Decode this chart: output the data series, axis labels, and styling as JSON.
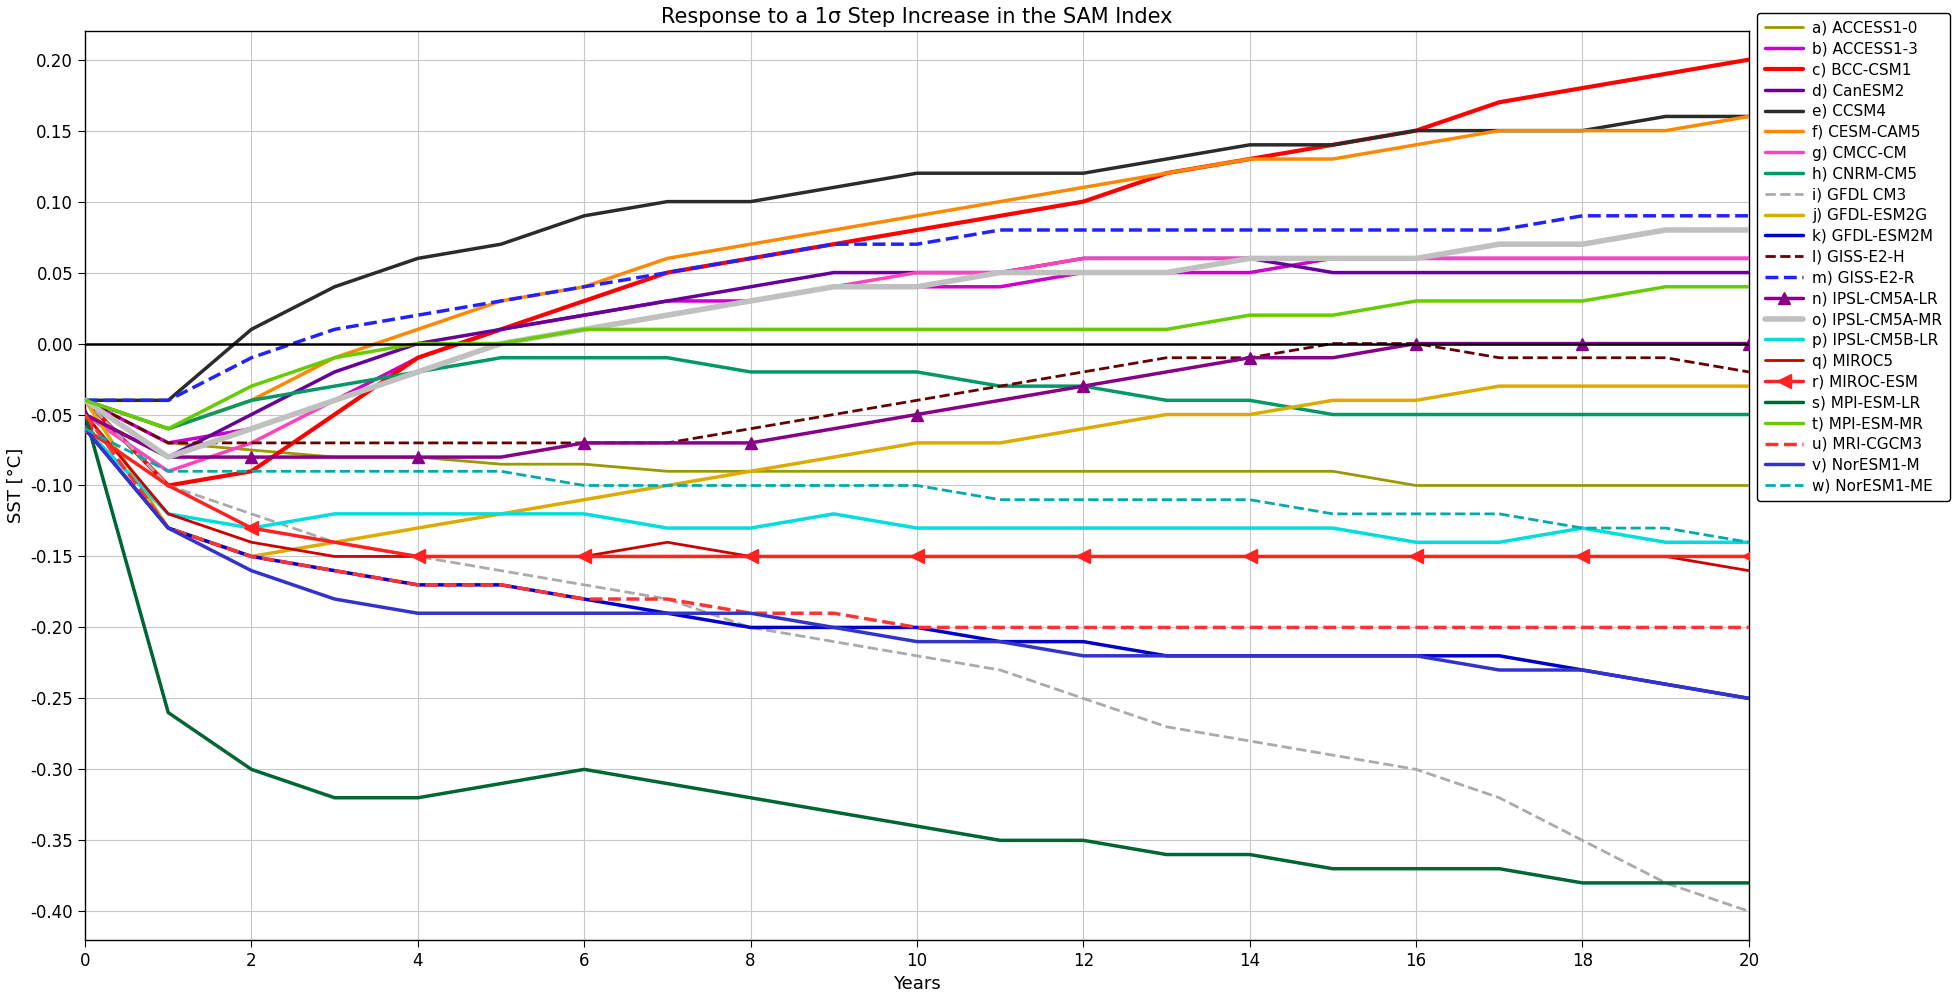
{
  "title": "Response to a 1σ Step Increase in the SAM Index",
  "xlabel": "Years",
  "ylabel": "SST [°C]",
  "xlim": [
    0,
    20
  ],
  "ylim": [
    -0.42,
    0.22
  ],
  "yticks": [
    -0.4,
    -0.35,
    -0.3,
    -0.25,
    -0.2,
    -0.15,
    -0.1,
    -0.05,
    0.0,
    0.05,
    0.1,
    0.15,
    0.2
  ],
  "xticks": [
    0,
    2,
    4,
    6,
    8,
    10,
    12,
    14,
    16,
    18,
    20
  ],
  "models": [
    {
      "label": "a) ACCESS1-0",
      "color": "#999900",
      "lw": 2.0,
      "ls": "-",
      "marker": null,
      "data_x": [
        0,
        1,
        2,
        3,
        4,
        5,
        6,
        7,
        8,
        9,
        10,
        11,
        12,
        13,
        14,
        15,
        16,
        17,
        18,
        19,
        20
      ],
      "data_y": [
        -0.04,
        -0.07,
        -0.075,
        -0.08,
        -0.08,
        -0.085,
        -0.085,
        -0.09,
        -0.09,
        -0.09,
        -0.09,
        -0.09,
        -0.09,
        -0.09,
        -0.09,
        -0.09,
        -0.1,
        -0.1,
        -0.1,
        -0.1,
        -0.1
      ]
    },
    {
      "label": "b) ACCESS1-3",
      "color": "#cc00cc",
      "lw": 2.5,
      "ls": "-",
      "marker": null,
      "data_x": [
        0,
        1,
        2,
        3,
        4,
        5,
        6,
        7,
        8,
        9,
        10,
        11,
        12,
        13,
        14,
        15,
        16,
        17,
        18,
        19,
        20
      ],
      "data_y": [
        -0.04,
        -0.07,
        -0.06,
        -0.04,
        -0.01,
        0.01,
        0.02,
        0.03,
        0.03,
        0.04,
        0.04,
        0.04,
        0.05,
        0.05,
        0.05,
        0.06,
        0.06,
        0.06,
        0.06,
        0.06,
        0.06
      ]
    },
    {
      "label": "c) BCC-CSM1",
      "color": "#ff0000",
      "lw": 3.0,
      "ls": "-",
      "marker": null,
      "data_x": [
        0,
        1,
        2,
        3,
        4,
        5,
        6,
        7,
        8,
        9,
        10,
        11,
        12,
        13,
        14,
        15,
        16,
        17,
        18,
        19,
        20
      ],
      "data_y": [
        -0.04,
        -0.1,
        -0.09,
        -0.05,
        -0.01,
        0.01,
        0.03,
        0.05,
        0.06,
        0.07,
        0.08,
        0.09,
        0.1,
        0.12,
        0.13,
        0.14,
        0.15,
        0.17,
        0.18,
        0.19,
        0.2
      ]
    },
    {
      "label": "d) CanESM2",
      "color": "#660099",
      "lw": 2.5,
      "ls": "-",
      "marker": null,
      "data_x": [
        0,
        1,
        2,
        3,
        4,
        5,
        6,
        7,
        8,
        9,
        10,
        11,
        12,
        13,
        14,
        15,
        16,
        17,
        18,
        19,
        20
      ],
      "data_y": [
        -0.05,
        -0.08,
        -0.05,
        -0.02,
        0.0,
        0.01,
        0.02,
        0.03,
        0.04,
        0.05,
        0.05,
        0.05,
        0.06,
        0.06,
        0.06,
        0.05,
        0.05,
        0.05,
        0.05,
        0.05,
        0.05
      ]
    },
    {
      "label": "e) CCSM4",
      "color": "#2b2b2b",
      "lw": 2.5,
      "ls": "-",
      "marker": null,
      "data_x": [
        0,
        1,
        2,
        3,
        4,
        5,
        6,
        7,
        8,
        9,
        10,
        11,
        12,
        13,
        14,
        15,
        16,
        17,
        18,
        19,
        20
      ],
      "data_y": [
        -0.04,
        -0.04,
        0.01,
        0.04,
        0.06,
        0.07,
        0.09,
        0.1,
        0.1,
        0.11,
        0.12,
        0.12,
        0.12,
        0.13,
        0.14,
        0.14,
        0.15,
        0.15,
        0.15,
        0.16,
        0.16
      ]
    },
    {
      "label": "f) CESM-CAM5",
      "color": "#ff8800",
      "lw": 2.5,
      "ls": "-",
      "marker": null,
      "data_x": [
        0,
        1,
        2,
        3,
        4,
        5,
        6,
        7,
        8,
        9,
        10,
        11,
        12,
        13,
        14,
        15,
        16,
        17,
        18,
        19,
        20
      ],
      "data_y": [
        -0.04,
        -0.06,
        -0.04,
        -0.01,
        0.01,
        0.03,
        0.04,
        0.06,
        0.07,
        0.08,
        0.09,
        0.1,
        0.11,
        0.12,
        0.13,
        0.13,
        0.14,
        0.15,
        0.15,
        0.15,
        0.16
      ]
    },
    {
      "label": "g) CMCC-CM",
      "color": "#ff44bb",
      "lw": 2.5,
      "ls": "-",
      "marker": null,
      "data_x": [
        0,
        1,
        2,
        3,
        4,
        5,
        6,
        7,
        8,
        9,
        10,
        11,
        12,
        13,
        14,
        15,
        16,
        17,
        18,
        19,
        20
      ],
      "data_y": [
        -0.05,
        -0.09,
        -0.07,
        -0.04,
        -0.02,
        0.0,
        0.01,
        0.02,
        0.03,
        0.04,
        0.05,
        0.05,
        0.06,
        0.06,
        0.06,
        0.06,
        0.06,
        0.06,
        0.06,
        0.06,
        0.06
      ]
    },
    {
      "label": "h) CNRM-CM5",
      "color": "#009966",
      "lw": 2.5,
      "ls": "-",
      "marker": null,
      "data_x": [
        0,
        1,
        2,
        3,
        4,
        5,
        6,
        7,
        8,
        9,
        10,
        11,
        12,
        13,
        14,
        15,
        16,
        17,
        18,
        19,
        20
      ],
      "data_y": [
        -0.04,
        -0.06,
        -0.04,
        -0.03,
        -0.02,
        -0.01,
        -0.01,
        -0.01,
        -0.02,
        -0.02,
        -0.02,
        -0.03,
        -0.03,
        -0.04,
        -0.04,
        -0.05,
        -0.05,
        -0.05,
        -0.05,
        -0.05,
        -0.05
      ]
    },
    {
      "label": "i) GFDL CM3",
      "color": "#aaaaaa",
      "lw": 2.0,
      "ls": "--",
      "marker": null,
      "data_x": [
        0,
        1,
        2,
        3,
        4,
        5,
        6,
        7,
        8,
        9,
        10,
        11,
        12,
        13,
        14,
        15,
        16,
        17,
        18,
        19,
        20
      ],
      "data_y": [
        -0.04,
        -0.1,
        -0.12,
        -0.14,
        -0.15,
        -0.16,
        -0.17,
        -0.18,
        -0.2,
        -0.21,
        -0.22,
        -0.23,
        -0.25,
        -0.27,
        -0.28,
        -0.29,
        -0.3,
        -0.32,
        -0.35,
        -0.38,
        -0.4
      ]
    },
    {
      "label": "j) GFDL-ESM2G",
      "color": "#ddaa00",
      "lw": 2.5,
      "ls": "-",
      "marker": null,
      "data_x": [
        0,
        1,
        2,
        3,
        4,
        5,
        6,
        7,
        8,
        9,
        10,
        11,
        12,
        13,
        14,
        15,
        16,
        17,
        18,
        19,
        20
      ],
      "data_y": [
        -0.04,
        -0.13,
        -0.15,
        -0.14,
        -0.13,
        -0.12,
        -0.11,
        -0.1,
        -0.09,
        -0.08,
        -0.07,
        -0.07,
        -0.06,
        -0.05,
        -0.05,
        -0.04,
        -0.04,
        -0.03,
        -0.03,
        -0.03,
        -0.03
      ]
    },
    {
      "label": "k) GFDL-ESM2M",
      "color": "#0000cc",
      "lw": 2.5,
      "ls": "-",
      "marker": null,
      "data_x": [
        0,
        1,
        2,
        3,
        4,
        5,
        6,
        7,
        8,
        9,
        10,
        11,
        12,
        13,
        14,
        15,
        16,
        17,
        18,
        19,
        20
      ],
      "data_y": [
        -0.06,
        -0.13,
        -0.15,
        -0.16,
        -0.17,
        -0.17,
        -0.18,
        -0.19,
        -0.2,
        -0.2,
        -0.2,
        -0.21,
        -0.21,
        -0.22,
        -0.22,
        -0.22,
        -0.22,
        -0.22,
        -0.23,
        -0.24,
        -0.25
      ]
    },
    {
      "label": "l) GISS-E2-H",
      "color": "#660000",
      "lw": 2.0,
      "ls": "--",
      "marker": null,
      "data_x": [
        0,
        1,
        2,
        3,
        4,
        5,
        6,
        7,
        8,
        9,
        10,
        11,
        12,
        13,
        14,
        15,
        16,
        17,
        18,
        19,
        20
      ],
      "data_y": [
        -0.04,
        -0.07,
        -0.07,
        -0.07,
        -0.07,
        -0.07,
        -0.07,
        -0.07,
        -0.06,
        -0.05,
        -0.04,
        -0.03,
        -0.02,
        -0.01,
        -0.01,
        0.0,
        0.0,
        -0.01,
        -0.01,
        -0.01,
        -0.02
      ]
    },
    {
      "label": "m) GISS-E2-R",
      "color": "#2222ff",
      "lw": 2.5,
      "ls": "--",
      "marker": null,
      "data_x": [
        0,
        1,
        2,
        3,
        4,
        5,
        6,
        7,
        8,
        9,
        10,
        11,
        12,
        13,
        14,
        15,
        16,
        17,
        18,
        19,
        20
      ],
      "data_y": [
        -0.04,
        -0.04,
        -0.01,
        0.01,
        0.02,
        0.03,
        0.04,
        0.05,
        0.06,
        0.07,
        0.07,
        0.08,
        0.08,
        0.08,
        0.08,
        0.08,
        0.08,
        0.08,
        0.09,
        0.09,
        0.09
      ]
    },
    {
      "label": "n) IPSL-CM5A-LR",
      "color": "#880088",
      "lw": 2.5,
      "ls": "-",
      "marker": "^",
      "markersize": 9,
      "markevery": 2,
      "data_x": [
        0,
        1,
        2,
        3,
        4,
        5,
        6,
        7,
        8,
        9,
        10,
        11,
        12,
        13,
        14,
        15,
        16,
        17,
        18,
        19,
        20
      ],
      "data_y": [
        -0.05,
        -0.08,
        -0.08,
        -0.08,
        -0.08,
        -0.08,
        -0.07,
        -0.07,
        -0.07,
        -0.06,
        -0.05,
        -0.04,
        -0.03,
        -0.02,
        -0.01,
        -0.01,
        0.0,
        0.0,
        0.0,
        0.0,
        0.0
      ]
    },
    {
      "label": "o) IPSL-CM5A-MR",
      "color": "#c0c0c0",
      "lw": 4.0,
      "ls": "-",
      "marker": null,
      "data_x": [
        0,
        1,
        2,
        3,
        4,
        5,
        6,
        7,
        8,
        9,
        10,
        11,
        12,
        13,
        14,
        15,
        16,
        17,
        18,
        19,
        20
      ],
      "data_y": [
        -0.04,
        -0.08,
        -0.06,
        -0.04,
        -0.02,
        0.0,
        0.01,
        0.02,
        0.03,
        0.04,
        0.04,
        0.05,
        0.05,
        0.05,
        0.06,
        0.06,
        0.06,
        0.07,
        0.07,
        0.08,
        0.08
      ]
    },
    {
      "label": "p) IPSL-CM5B-LR",
      "color": "#00dddd",
      "lw": 2.5,
      "ls": "-",
      "marker": null,
      "data_x": [
        0,
        1,
        2,
        3,
        4,
        5,
        6,
        7,
        8,
        9,
        10,
        11,
        12,
        13,
        14,
        15,
        16,
        17,
        18,
        19,
        20
      ],
      "data_y": [
        -0.06,
        -0.12,
        -0.13,
        -0.12,
        -0.12,
        -0.12,
        -0.12,
        -0.13,
        -0.13,
        -0.12,
        -0.13,
        -0.13,
        -0.13,
        -0.13,
        -0.13,
        -0.13,
        -0.14,
        -0.14,
        -0.13,
        -0.14,
        -0.14
      ]
    },
    {
      "label": "q) MIROC5",
      "color": "#cc0000",
      "lw": 2.0,
      "ls": "-",
      "marker": null,
      "data_x": [
        0,
        1,
        2,
        3,
        4,
        5,
        6,
        7,
        8,
        9,
        10,
        11,
        12,
        13,
        14,
        15,
        16,
        17,
        18,
        19,
        20
      ],
      "data_y": [
        -0.05,
        -0.12,
        -0.14,
        -0.15,
        -0.15,
        -0.15,
        -0.15,
        -0.14,
        -0.15,
        -0.15,
        -0.15,
        -0.15,
        -0.15,
        -0.15,
        -0.15,
        -0.15,
        -0.15,
        -0.15,
        -0.15,
        -0.15,
        -0.16
      ]
    },
    {
      "label": "r) MIROC-ESM",
      "color": "#ff2222",
      "lw": 2.5,
      "ls": "-",
      "marker": "<",
      "markersize": 10,
      "markevery": 2,
      "data_x": [
        0,
        1,
        2,
        3,
        4,
        5,
        6,
        7,
        8,
        9,
        10,
        11,
        12,
        13,
        14,
        15,
        16,
        17,
        18,
        19,
        20
      ],
      "data_y": [
        -0.06,
        -0.1,
        -0.13,
        -0.14,
        -0.15,
        -0.15,
        -0.15,
        -0.15,
        -0.15,
        -0.15,
        -0.15,
        -0.15,
        -0.15,
        -0.15,
        -0.15,
        -0.15,
        -0.15,
        -0.15,
        -0.15,
        -0.15,
        -0.15
      ]
    },
    {
      "label": "s) MPI-ESM-LR",
      "color": "#006633",
      "lw": 2.5,
      "ls": "-",
      "marker": null,
      "data_x": [
        0,
        1,
        2,
        3,
        4,
        5,
        6,
        7,
        8,
        9,
        10,
        11,
        12,
        13,
        14,
        15,
        16,
        17,
        18,
        19,
        20
      ],
      "data_y": [
        -0.05,
        -0.26,
        -0.3,
        -0.32,
        -0.32,
        -0.31,
        -0.3,
        -0.31,
        -0.32,
        -0.33,
        -0.34,
        -0.35,
        -0.35,
        -0.36,
        -0.36,
        -0.37,
        -0.37,
        -0.37,
        -0.38,
        -0.38,
        -0.38
      ]
    },
    {
      "label": "t) MPI-ESM-MR",
      "color": "#66cc00",
      "lw": 2.5,
      "ls": "-",
      "marker": null,
      "data_x": [
        0,
        1,
        2,
        3,
        4,
        5,
        6,
        7,
        8,
        9,
        10,
        11,
        12,
        13,
        14,
        15,
        16,
        17,
        18,
        19,
        20
      ],
      "data_y": [
        -0.04,
        -0.06,
        -0.03,
        -0.01,
        0.0,
        0.0,
        0.01,
        0.01,
        0.01,
        0.01,
        0.01,
        0.01,
        0.01,
        0.01,
        0.02,
        0.02,
        0.03,
        0.03,
        0.03,
        0.04,
        0.04
      ]
    },
    {
      "label": "u) MRI-CGCM3",
      "color": "#ff3333",
      "lw": 2.5,
      "ls": "--",
      "marker": null,
      "data_x": [
        0,
        1,
        2,
        3,
        4,
        5,
        6,
        7,
        8,
        9,
        10,
        11,
        12,
        13,
        14,
        15,
        16,
        17,
        18,
        19,
        20
      ],
      "data_y": [
        -0.05,
        -0.13,
        -0.15,
        -0.16,
        -0.17,
        -0.17,
        -0.18,
        -0.18,
        -0.19,
        -0.19,
        -0.2,
        -0.2,
        -0.2,
        -0.2,
        -0.2,
        -0.2,
        -0.2,
        -0.2,
        -0.2,
        -0.2,
        -0.2
      ]
    },
    {
      "label": "v) NorESM1-M",
      "color": "#3333cc",
      "lw": 2.5,
      "ls": "-",
      "marker": null,
      "data_x": [
        0,
        1,
        2,
        3,
        4,
        5,
        6,
        7,
        8,
        9,
        10,
        11,
        12,
        13,
        14,
        15,
        16,
        17,
        18,
        19,
        20
      ],
      "data_y": [
        -0.06,
        -0.13,
        -0.16,
        -0.18,
        -0.19,
        -0.19,
        -0.19,
        -0.19,
        -0.19,
        -0.2,
        -0.21,
        -0.21,
        -0.22,
        -0.22,
        -0.22,
        -0.22,
        -0.22,
        -0.23,
        -0.23,
        -0.24,
        -0.25
      ]
    },
    {
      "label": "w) NorESM1-ME",
      "color": "#00aaaa",
      "lw": 2.0,
      "ls": "--",
      "marker": null,
      "data_x": [
        0,
        1,
        2,
        3,
        4,
        5,
        6,
        7,
        8,
        9,
        10,
        11,
        12,
        13,
        14,
        15,
        16,
        17,
        18,
        19,
        20
      ],
      "data_y": [
        -0.06,
        -0.09,
        -0.09,
        -0.09,
        -0.09,
        -0.09,
        -0.1,
        -0.1,
        -0.1,
        -0.1,
        -0.1,
        -0.11,
        -0.11,
        -0.11,
        -0.11,
        -0.12,
        -0.12,
        -0.12,
        -0.13,
        -0.13,
        -0.14
      ]
    }
  ],
  "bg_color": "#ffffff",
  "grid_color": "#c8c8c8",
  "title_fontsize": 15,
  "label_fontsize": 13,
  "tick_fontsize": 12,
  "legend_fontsize": 11
}
